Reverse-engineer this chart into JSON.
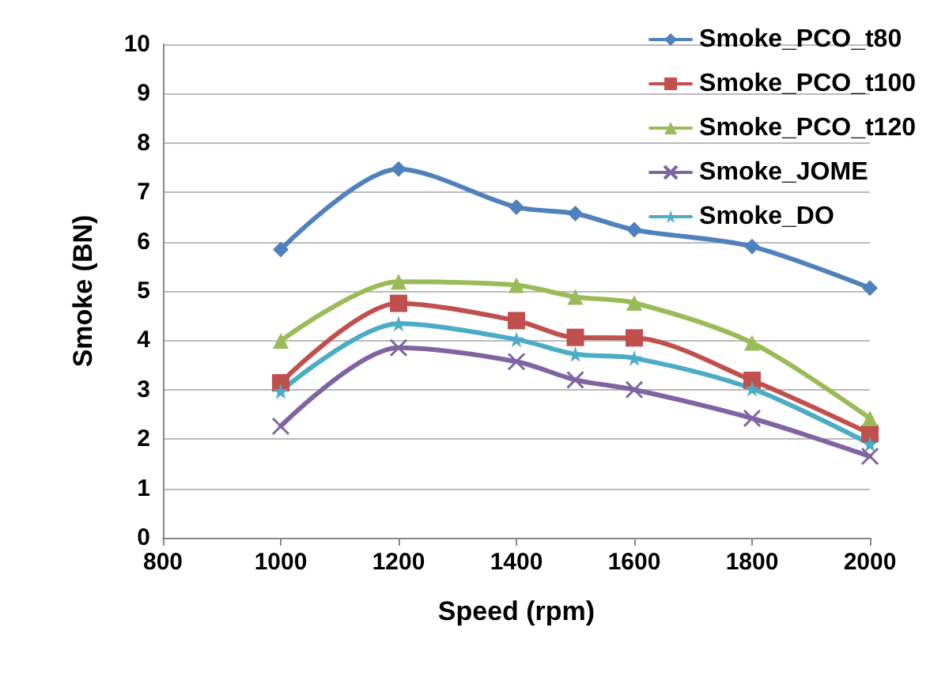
{
  "chart_data": {
    "type": "line",
    "xlabel": "Speed (rpm)",
    "ylabel": "Smoke (BN)",
    "x": [
      1000,
      1200,
      1400,
      1500,
      1600,
      1800,
      2000
    ],
    "xlim": [
      800,
      2000
    ],
    "xticks": [
      800,
      1000,
      1200,
      1400,
      1600,
      1800,
      2000
    ],
    "ylim": [
      0,
      10
    ],
    "yticks": [
      0,
      1,
      2,
      3,
      4,
      5,
      6,
      7,
      8,
      9,
      10
    ],
    "grid": "y",
    "legend": "top right",
    "line_style": "solid",
    "series": [
      {
        "name": "Smoke_PCO_t80",
        "color": "#4f81bd",
        "marker": "diamond",
        "values": [
          5.84,
          7.47,
          6.7,
          6.57,
          6.24,
          5.9,
          5.06
        ]
      },
      {
        "name": "Smoke_PCO_t100",
        "color": "#c0504d",
        "marker": "square",
        "values": [
          3.14,
          4.75,
          4.4,
          4.06,
          4.05,
          3.19,
          2.11
        ]
      },
      {
        "name": "Smoke_PCO_t120",
        "color": "#9bbb59",
        "marker": "triangle",
        "values": [
          3.99,
          5.19,
          5.12,
          4.88,
          4.76,
          3.95,
          2.42
        ]
      },
      {
        "name": "Smoke_JOME",
        "color": "#8064a2",
        "marker": "cross",
        "values": [
          2.26,
          3.85,
          3.57,
          3.2,
          3.0,
          2.42,
          1.65
        ]
      },
      {
        "name": "Smoke_DO",
        "color": "#4bacc6",
        "marker": "star",
        "values": [
          2.97,
          4.34,
          4.02,
          3.72,
          3.64,
          3.02,
          1.9
        ]
      }
    ]
  }
}
